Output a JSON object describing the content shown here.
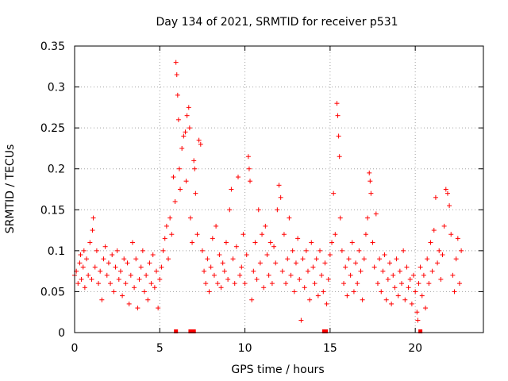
{
  "chart_data": {
    "type": "scatter",
    "title": "Day 134 of 2021, SRMTID for receiver p531",
    "xlabel": "GPS time / hours",
    "ylabel": "SRMTID / TECUs",
    "xlim": [
      0,
      24
    ],
    "ylim": [
      0,
      0.35
    ],
    "x_ticks": [
      "0",
      "5",
      "10",
      "15",
      "20"
    ],
    "x_tick_values": [
      0,
      5,
      10,
      15,
      20
    ],
    "y_ticks": [
      "0",
      "0.05",
      "0.1",
      "0.15",
      "0.2",
      "0.25",
      "0.3",
      "0.35"
    ],
    "y_tick_values": [
      0,
      0.05,
      0.1,
      0.15,
      0.2,
      0.25,
      0.3,
      0.35
    ],
    "grid": true,
    "marker": "+",
    "color": "#ff0000",
    "series": [
      {
        "name": "SRMTID",
        "points": [
          [
            0.0,
            0.07
          ],
          [
            0.1,
            0.075
          ],
          [
            0.2,
            0.06
          ],
          [
            0.3,
            0.085
          ],
          [
            0.35,
            0.095
          ],
          [
            0.4,
            0.065
          ],
          [
            0.5,
            0.08
          ],
          [
            0.55,
            0.1
          ],
          [
            0.6,
            0.055
          ],
          [
            0.7,
            0.09
          ],
          [
            0.8,
            0.07
          ],
          [
            0.9,
            0.11
          ],
          [
            1.0,
            0.065
          ],
          [
            1.05,
            0.125
          ],
          [
            1.1,
            0.14
          ],
          [
            1.2,
            0.08
          ],
          [
            1.3,
            0.1
          ],
          [
            1.4,
            0.06
          ],
          [
            1.5,
            0.075
          ],
          [
            1.6,
            0.04
          ],
          [
            1.7,
            0.09
          ],
          [
            1.8,
            0.105
          ],
          [
            1.9,
            0.07
          ],
          [
            2.0,
            0.085
          ],
          [
            2.1,
            0.06
          ],
          [
            2.2,
            0.095
          ],
          [
            2.3,
            0.05
          ],
          [
            2.4,
            0.08
          ],
          [
            2.5,
            0.1
          ],
          [
            2.6,
            0.065
          ],
          [
            2.7,
            0.075
          ],
          [
            2.8,
            0.045
          ],
          [
            2.9,
            0.09
          ],
          [
            3.0,
            0.06
          ],
          [
            3.1,
            0.085
          ],
          [
            3.2,
            0.035
          ],
          [
            3.3,
            0.07
          ],
          [
            3.4,
            0.11
          ],
          [
            3.5,
            0.055
          ],
          [
            3.6,
            0.09
          ],
          [
            3.7,
            0.03
          ],
          [
            3.8,
            0.065
          ],
          [
            3.9,
            0.08
          ],
          [
            4.0,
            0.1
          ],
          [
            4.1,
            0.05
          ],
          [
            4.2,
            0.07
          ],
          [
            4.3,
            0.04
          ],
          [
            4.4,
            0.085
          ],
          [
            4.5,
            0.06
          ],
          [
            4.6,
            0.095
          ],
          [
            4.7,
            0.055
          ],
          [
            4.8,
            0.075
          ],
          [
            4.9,
            0.03
          ],
          [
            5.0,
            0.065
          ],
          [
            5.1,
            0.08
          ],
          [
            5.2,
            0.1
          ],
          [
            5.3,
            0.115
          ],
          [
            5.4,
            0.13
          ],
          [
            5.5,
            0.09
          ],
          [
            5.6,
            0.14
          ],
          [
            5.7,
            0.12
          ],
          [
            5.8,
            0.19
          ],
          [
            5.9,
            0.16
          ],
          [
            5.95,
            0.33
          ],
          [
            6.0,
            0.315
          ],
          [
            6.05,
            0.29
          ],
          [
            6.1,
            0.26
          ],
          [
            6.15,
            0.2
          ],
          [
            6.2,
            0.175
          ],
          [
            6.3,
            0.225
          ],
          [
            6.4,
            0.24
          ],
          [
            6.5,
            0.245
          ],
          [
            6.55,
            0.185
          ],
          [
            6.6,
            0.265
          ],
          [
            6.7,
            0.275
          ],
          [
            6.75,
            0.25
          ],
          [
            6.8,
            0.14
          ],
          [
            6.9,
            0.11
          ],
          [
            7.0,
            0.21
          ],
          [
            7.05,
            0.2
          ],
          [
            7.1,
            0.17
          ],
          [
            7.2,
            0.12
          ],
          [
            7.3,
            0.235
          ],
          [
            7.4,
            0.23
          ],
          [
            7.5,
            0.1
          ],
          [
            7.6,
            0.075
          ],
          [
            7.7,
            0.06
          ],
          [
            7.8,
            0.09
          ],
          [
            7.9,
            0.05
          ],
          [
            8.0,
            0.08
          ],
          [
            8.1,
            0.115
          ],
          [
            8.2,
            0.07
          ],
          [
            8.3,
            0.13
          ],
          [
            8.4,
            0.06
          ],
          [
            8.5,
            0.095
          ],
          [
            8.6,
            0.055
          ],
          [
            8.7,
            0.085
          ],
          [
            8.8,
            0.075
          ],
          [
            8.9,
            0.11
          ],
          [
            9.0,
            0.065
          ],
          [
            9.1,
            0.15
          ],
          [
            9.2,
            0.175
          ],
          [
            9.3,
            0.09
          ],
          [
            9.4,
            0.06
          ],
          [
            9.5,
            0.105
          ],
          [
            9.6,
            0.19
          ],
          [
            9.7,
            0.07
          ],
          [
            9.8,
            0.08
          ],
          [
            9.9,
            0.12
          ],
          [
            10.0,
            0.06
          ],
          [
            10.1,
            0.095
          ],
          [
            10.2,
            0.215
          ],
          [
            10.25,
            0.2
          ],
          [
            10.3,
            0.185
          ],
          [
            10.4,
            0.04
          ],
          [
            10.5,
            0.075
          ],
          [
            10.6,
            0.11
          ],
          [
            10.7,
            0.065
          ],
          [
            10.8,
            0.15
          ],
          [
            10.9,
            0.085
          ],
          [
            11.0,
            0.12
          ],
          [
            11.1,
            0.055
          ],
          [
            11.2,
            0.13
          ],
          [
            11.3,
            0.095
          ],
          [
            11.4,
            0.07
          ],
          [
            11.5,
            0.11
          ],
          [
            11.6,
            0.06
          ],
          [
            11.7,
            0.105
          ],
          [
            11.8,
            0.085
          ],
          [
            11.9,
            0.15
          ],
          [
            12.0,
            0.18
          ],
          [
            12.1,
            0.165
          ],
          [
            12.2,
            0.075
          ],
          [
            12.3,
            0.12
          ],
          [
            12.4,
            0.06
          ],
          [
            12.5,
            0.09
          ],
          [
            12.6,
            0.14
          ],
          [
            12.7,
            0.07
          ],
          [
            12.8,
            0.1
          ],
          [
            12.9,
            0.05
          ],
          [
            13.0,
            0.085
          ],
          [
            13.1,
            0.115
          ],
          [
            13.2,
            0.065
          ],
          [
            13.3,
            0.015
          ],
          [
            13.4,
            0.09
          ],
          [
            13.5,
            0.055
          ],
          [
            13.6,
            0.1
          ],
          [
            13.7,
            0.075
          ],
          [
            13.8,
            0.04
          ],
          [
            13.9,
            0.11
          ],
          [
            14.0,
            0.08
          ],
          [
            14.1,
            0.06
          ],
          [
            14.2,
            0.09
          ],
          [
            14.3,
            0.045
          ],
          [
            14.4,
            0.1
          ],
          [
            14.5,
            0.07
          ],
          [
            14.6,
            0.05
          ],
          [
            14.7,
            0.085
          ],
          [
            14.8,
            0.035
          ],
          [
            14.9,
            0.065
          ],
          [
            15.0,
            0.095
          ],
          [
            15.1,
            0.11
          ],
          [
            15.2,
            0.17
          ],
          [
            15.3,
            0.12
          ],
          [
            15.4,
            0.28
          ],
          [
            15.45,
            0.265
          ],
          [
            15.5,
            0.24
          ],
          [
            15.55,
            0.215
          ],
          [
            15.6,
            0.14
          ],
          [
            15.7,
            0.1
          ],
          [
            15.8,
            0.06
          ],
          [
            15.9,
            0.08
          ],
          [
            16.0,
            0.045
          ],
          [
            16.1,
            0.09
          ],
          [
            16.2,
            0.07
          ],
          [
            16.3,
            0.11
          ],
          [
            16.4,
            0.05
          ],
          [
            16.5,
            0.085
          ],
          [
            16.6,
            0.06
          ],
          [
            16.7,
            0.1
          ],
          [
            16.8,
            0.075
          ],
          [
            16.9,
            0.04
          ],
          [
            17.0,
            0.09
          ],
          [
            17.1,
            0.12
          ],
          [
            17.2,
            0.14
          ],
          [
            17.3,
            0.195
          ],
          [
            17.35,
            0.185
          ],
          [
            17.4,
            0.17
          ],
          [
            17.5,
            0.11
          ],
          [
            17.6,
            0.08
          ],
          [
            17.7,
            0.145
          ],
          [
            17.8,
            0.06
          ],
          [
            17.9,
            0.09
          ],
          [
            18.0,
            0.05
          ],
          [
            18.1,
            0.075
          ],
          [
            18.2,
            0.095
          ],
          [
            18.3,
            0.04
          ],
          [
            18.4,
            0.065
          ],
          [
            18.5,
            0.085
          ],
          [
            18.6,
            0.035
          ],
          [
            18.7,
            0.07
          ],
          [
            18.8,
            0.055
          ],
          [
            18.9,
            0.09
          ],
          [
            19.0,
            0.045
          ],
          [
            19.1,
            0.075
          ],
          [
            19.2,
            0.06
          ],
          [
            19.3,
            0.1
          ],
          [
            19.4,
            0.04
          ],
          [
            19.5,
            0.08
          ],
          [
            19.6,
            0.055
          ],
          [
            19.7,
            0.065
          ],
          [
            19.8,
            0.035
          ],
          [
            19.9,
            0.07
          ],
          [
            20.0,
            0.05
          ],
          [
            20.1,
            0.025
          ],
          [
            20.15,
            0.015
          ],
          [
            20.2,
            0.06
          ],
          [
            20.3,
            0.08
          ],
          [
            20.4,
            0.045
          ],
          [
            20.5,
            0.07
          ],
          [
            20.6,
            0.03
          ],
          [
            20.7,
            0.09
          ],
          [
            20.8,
            0.06
          ],
          [
            20.9,
            0.11
          ],
          [
            21.0,
            0.075
          ],
          [
            21.1,
            0.125
          ],
          [
            21.2,
            0.165
          ],
          [
            21.3,
            0.085
          ],
          [
            21.4,
            0.1
          ],
          [
            21.5,
            0.065
          ],
          [
            21.6,
            0.095
          ],
          [
            21.7,
            0.13
          ],
          [
            21.8,
            0.175
          ],
          [
            21.9,
            0.17
          ],
          [
            22.0,
            0.155
          ],
          [
            22.1,
            0.12
          ],
          [
            22.2,
            0.07
          ],
          [
            22.3,
            0.05
          ],
          [
            22.4,
            0.09
          ],
          [
            22.5,
            0.115
          ],
          [
            22.6,
            0.06
          ],
          [
            22.7,
            0.1
          ]
        ]
      }
    ],
    "zero_markers": [
      5.95,
      6.8,
      7.0,
      14.65,
      14.75,
      20.3
    ]
  }
}
